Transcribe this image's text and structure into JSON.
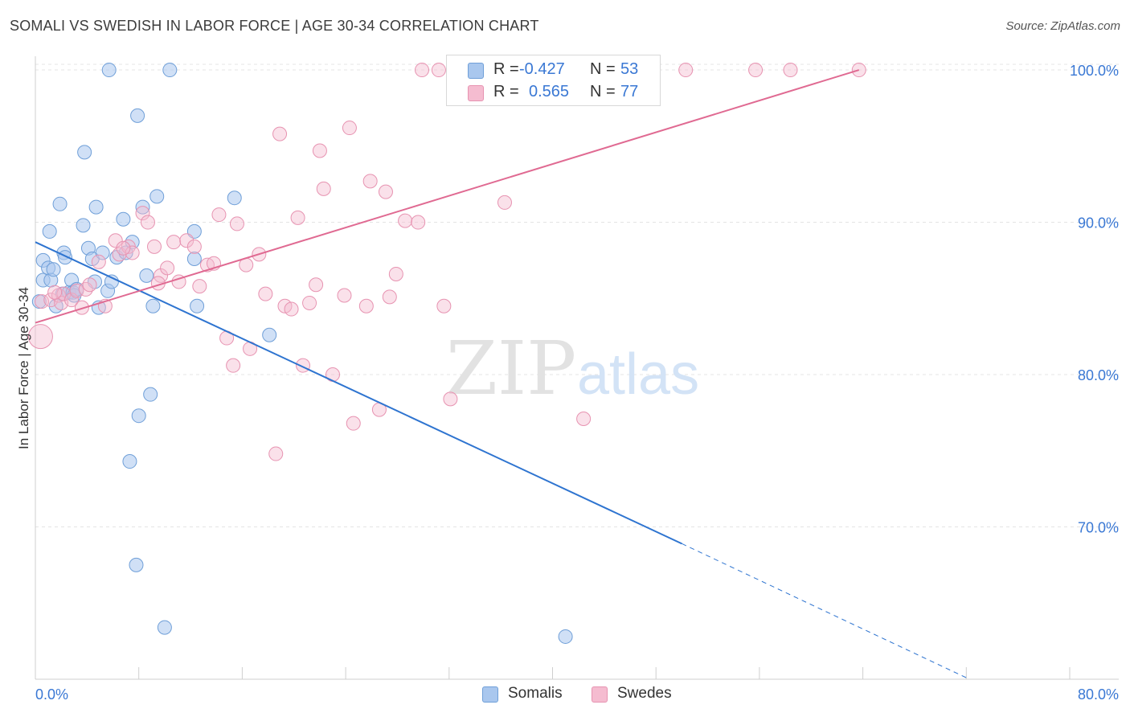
{
  "title": "SOMALI VS SWEDISH IN LABOR FORCE | AGE 30-34 CORRELATION CHART",
  "source": "Source: ZipAtlas.com",
  "watermark": {
    "zip": "ZIP",
    "atlas": "atlas"
  },
  "legend_top": {
    "rows": [
      {
        "r_label": "R =",
        "r_value": "-0.427",
        "n_label": "N =",
        "n_value": "53"
      },
      {
        "r_label": "R =",
        "r_value": "0.565",
        "n_label": "N =",
        "n_value": "77"
      }
    ]
  },
  "legend_bottom": [
    {
      "label": "Somalis"
    },
    {
      "label": "Swedes"
    }
  ],
  "colors": {
    "somali_fill": "#a9c7ee",
    "somali_stroke": "#6f9fd8",
    "somali_line": "#2e74d0",
    "swede_fill": "#f5bcd0",
    "swede_stroke": "#e793b1",
    "swede_line": "#e06a92",
    "axis_text": "#3a78d4",
    "grid": "#e4e4e4"
  },
  "chart_data": {
    "type": "scatter",
    "title": "SOMALI VS SWEDISH IN LABOR FORCE | AGE 30-34 CORRELATION CHART",
    "xlabel": "",
    "ylabel": "In Labor Force | Age 30-34",
    "xlim": [
      0,
      80
    ],
    "ylim": [
      60,
      100.9
    ],
    "x_tick_labels": [
      "0.0%",
      "80.0%"
    ],
    "y_ticks": [
      70,
      80,
      90,
      100
    ],
    "y_tick_labels": [
      "70.0%",
      "80.0%",
      "90.0%",
      "100.0%"
    ],
    "grid": true,
    "legend_position": "top-center",
    "series": [
      {
        "name": "Somalis",
        "r": -0.427,
        "n": 53,
        "points": [
          [
            0.3,
            84.8
          ],
          [
            0.6,
            86.2
          ],
          [
            0.6,
            87.5
          ],
          [
            1.0,
            87.0
          ],
          [
            1.2,
            86.2
          ],
          [
            1.1,
            89.4
          ],
          [
            1.4,
            86.9
          ],
          [
            1.6,
            84.5
          ],
          [
            1.9,
            91.2
          ],
          [
            2.1,
            85.3
          ],
          [
            2.2,
            88.0
          ],
          [
            2.3,
            87.7
          ],
          [
            2.6,
            85.4
          ],
          [
            2.8,
            86.2
          ],
          [
            2.9,
            85.4
          ],
          [
            3.0,
            85.2
          ],
          [
            3.2,
            85.6
          ],
          [
            3.7,
            89.8
          ],
          [
            4.1,
            88.3
          ],
          [
            4.4,
            87.6
          ],
          [
            4.6,
            86.1
          ],
          [
            4.7,
            91.0
          ],
          [
            4.9,
            84.4
          ],
          [
            5.2,
            88.0
          ],
          [
            5.6,
            85.5
          ],
          [
            5.9,
            86.1
          ],
          [
            6.3,
            87.7
          ],
          [
            6.8,
            90.2
          ],
          [
            7.0,
            88.0
          ],
          [
            7.5,
            88.7
          ],
          [
            7.9,
            97.0
          ],
          [
            8.3,
            91.0
          ],
          [
            8.6,
            86.5
          ],
          [
            9.1,
            84.5
          ],
          [
            9.4,
            91.7
          ],
          [
            10.4,
            100.0
          ],
          [
            12.3,
            87.6
          ],
          [
            12.3,
            89.4
          ],
          [
            12.5,
            84.5
          ],
          [
            15.4,
            91.6
          ],
          [
            18.1,
            82.6
          ],
          [
            5.7,
            100.0
          ],
          [
            3.8,
            94.6
          ],
          [
            7.3,
            74.3
          ],
          [
            8.0,
            77.3
          ],
          [
            8.9,
            78.7
          ],
          [
            7.8,
            67.5
          ],
          [
            10.0,
            63.4
          ],
          [
            41.0,
            62.8
          ],
          [
            41.3,
            99.8
          ],
          [
            41.5,
            99.9
          ],
          [
            42.0,
            99.8
          ],
          [
            41.8,
            99.9
          ]
        ],
        "trend": {
          "x": [
            0,
            50
          ],
          "y": [
            88.7,
            68.9
          ]
        },
        "trend_dashed": {
          "x": [
            50,
            72.0
          ],
          "y": [
            68.9,
            60.1
          ]
        }
      },
      {
        "name": "Swedes",
        "r": 0.565,
        "n": 77,
        "points": [
          [
            0.4,
            82.5
          ],
          [
            0.5,
            84.8
          ],
          [
            1.2,
            84.9
          ],
          [
            1.8,
            85.2
          ],
          [
            2.0,
            84.7
          ],
          [
            2.2,
            85.3
          ],
          [
            2.8,
            84.9
          ],
          [
            3.2,
            85.5
          ],
          [
            3.6,
            84.4
          ],
          [
            3.9,
            85.6
          ],
          [
            4.2,
            85.9
          ],
          [
            4.9,
            87.4
          ],
          [
            5.4,
            84.5
          ],
          [
            6.2,
            88.8
          ],
          [
            6.5,
            87.9
          ],
          [
            7.2,
            88.4
          ],
          [
            7.5,
            88.0
          ],
          [
            8.3,
            90.6
          ],
          [
            8.7,
            90.0
          ],
          [
            9.2,
            88.4
          ],
          [
            9.7,
            86.5
          ],
          [
            10.2,
            87.0
          ],
          [
            10.7,
            88.7
          ],
          [
            11.1,
            86.1
          ],
          [
            11.7,
            88.8
          ],
          [
            12.3,
            88.4
          ],
          [
            12.7,
            85.8
          ],
          [
            13.3,
            87.2
          ],
          [
            13.8,
            87.3
          ],
          [
            14.2,
            90.5
          ],
          [
            14.8,
            82.4
          ],
          [
            15.3,
            80.6
          ],
          [
            15.6,
            89.9
          ],
          [
            16.3,
            87.2
          ],
          [
            16.6,
            81.7
          ],
          [
            17.3,
            87.9
          ],
          [
            17.8,
            85.3
          ],
          [
            18.6,
            74.8
          ],
          [
            18.9,
            95.8
          ],
          [
            19.3,
            84.5
          ],
          [
            19.8,
            84.3
          ],
          [
            20.3,
            90.3
          ],
          [
            20.7,
            80.6
          ],
          [
            21.2,
            84.7
          ],
          [
            21.7,
            85.9
          ],
          [
            22.0,
            94.7
          ],
          [
            22.3,
            92.2
          ],
          [
            23.0,
            80.0
          ],
          [
            23.9,
            85.2
          ],
          [
            24.3,
            96.2
          ],
          [
            24.6,
            76.8
          ],
          [
            25.6,
            84.5
          ],
          [
            25.9,
            92.7
          ],
          [
            26.6,
            77.7
          ],
          [
            27.1,
            92.0
          ],
          [
            27.4,
            85.1
          ],
          [
            27.9,
            86.6
          ],
          [
            28.6,
            90.1
          ],
          [
            29.6,
            90.0
          ],
          [
            29.9,
            100.0
          ],
          [
            31.2,
            100.0
          ],
          [
            31.6,
            84.5
          ],
          [
            32.1,
            78.4
          ],
          [
            33.2,
            100.0
          ],
          [
            34.8,
            100.0
          ],
          [
            36.3,
            91.3
          ],
          [
            38.5,
            100.0
          ],
          [
            42.4,
            77.1
          ],
          [
            44.8,
            100.0
          ],
          [
            46.1,
            100.0
          ],
          [
            50.3,
            100.0
          ],
          [
            55.7,
            100.0
          ],
          [
            58.4,
            100.0
          ],
          [
            63.7,
            100.0
          ],
          [
            1.5,
            85.4
          ],
          [
            6.8,
            88.3
          ],
          [
            9.5,
            86.0
          ]
        ],
        "trend": {
          "x": [
            0,
            63.7
          ],
          "y": [
            83.4,
            100.0
          ]
        }
      }
    ]
  }
}
